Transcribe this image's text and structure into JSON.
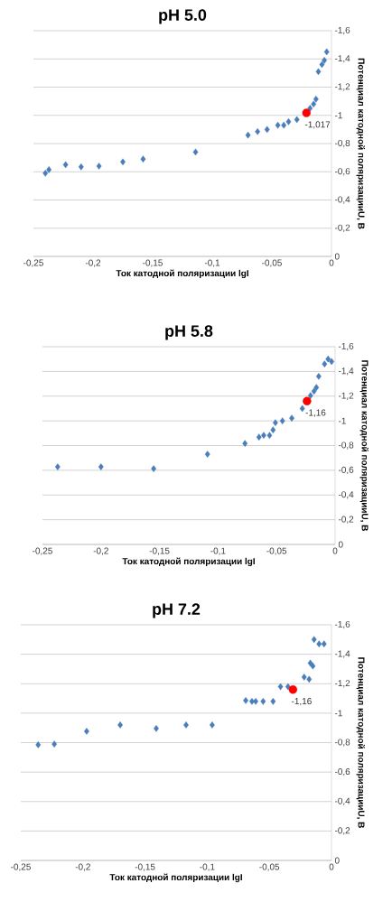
{
  "chart_data": [
    {
      "type": "scatter",
      "title": "pH 5.0",
      "xlabel": "Ток катодной поляризации lgI",
      "ylabel": "Потенциал катодной поляризацииU, В",
      "grid": "y",
      "xlim": [
        -0.25,
        0
      ],
      "ylim": [
        0,
        -1.6
      ],
      "xticks": [
        {
          "value": -0.25,
          "label": "-0,25"
        },
        {
          "value": -0.2,
          "label": "-0,2"
        },
        {
          "value": -0.15,
          "label": "-0,15"
        },
        {
          "value": -0.1,
          "label": "-0,1"
        },
        {
          "value": -0.05,
          "label": "-0,05"
        },
        0
      ],
      "yticks": [
        0,
        {
          "value": -0.2,
          "label": "-0,2"
        },
        {
          "value": -0.4,
          "label": "-0,4"
        },
        {
          "value": -0.6,
          "label": "-0,6"
        },
        {
          "value": -0.8,
          "label": "-0,8"
        },
        -1,
        {
          "value": -1.2,
          "label": "-1,2"
        },
        {
          "value": -1.4,
          "label": "-1,4"
        },
        {
          "value": -1.6,
          "label": "-1,6"
        }
      ],
      "series": [
        {
          "color": "#4a7ebb",
          "marker": "diamond",
          "x": [
            -0.24,
            -0.237,
            -0.223,
            -0.21,
            -0.195,
            -0.175,
            -0.158,
            -0.114,
            -0.07,
            -0.062,
            -0.054,
            -0.045,
            -0.04,
            -0.036,
            -0.029,
            -0.018,
            -0.015,
            -0.013,
            -0.011,
            -0.008,
            -0.006,
            -0.004
          ],
          "values": [
            -0.59,
            -0.615,
            -0.65,
            -0.635,
            -0.64,
            -0.67,
            -0.69,
            -0.74,
            -0.86,
            -0.885,
            -0.9,
            -0.93,
            -0.93,
            -0.955,
            -0.97,
            -1.05,
            -1.08,
            -1.115,
            -1.31,
            -1.36,
            -1.39,
            -1.45
          ]
        },
        {
          "color": "#ff0000",
          "marker": "circle",
          "x": [
            -0.021
          ],
          "values": [
            -1.017
          ]
        }
      ],
      "annotations": [
        {
          "text": "-1,017",
          "x": -0.021,
          "y": -1.017
        }
      ]
    },
    {
      "type": "scatter",
      "title": "pH 5.8",
      "xlabel": "Ток катодной поляризации lgI",
      "ylabel": "Потенциал катодной поляризацииU, В",
      "grid": "y",
      "xlim": [
        -0.25,
        0
      ],
      "ylim": [
        0,
        -1.6
      ],
      "xticks": [
        {
          "value": -0.25,
          "label": "-0,25"
        },
        {
          "value": -0.2,
          "label": "-0,2"
        },
        {
          "value": -0.15,
          "label": "-0,15"
        },
        {
          "value": -0.1,
          "label": "-0,1"
        },
        {
          "value": -0.05,
          "label": "-0,05"
        },
        0
      ],
      "yticks": [
        0,
        {
          "value": -0.2,
          "label": "-0,2"
        },
        {
          "value": -0.4,
          "label": "-0,4"
        },
        {
          "value": -0.6,
          "label": "-0,6"
        },
        {
          "value": -0.8,
          "label": "-0,8"
        },
        -1,
        {
          "value": -1.2,
          "label": "-1,2"
        },
        {
          "value": -1.4,
          "label": "-1,4"
        },
        {
          "value": -1.6,
          "label": "-1,6"
        }
      ],
      "series": [
        {
          "color": "#4a7ebb",
          "marker": "diamond",
          "x": [
            -0.237,
            -0.2,
            -0.155,
            -0.109,
            -0.077,
            -0.065,
            -0.061,
            -0.056,
            -0.053,
            -0.051,
            -0.045,
            -0.037,
            -0.028,
            -0.021,
            -0.018,
            -0.016,
            -0.014,
            -0.009,
            -0.006,
            -0.003
          ],
          "values": [
            -0.628,
            -0.628,
            -0.613,
            -0.73,
            -0.817,
            -0.868,
            -0.883,
            -0.883,
            -0.927,
            -0.985,
            -1.0,
            -1.022,
            -1.1,
            -1.204,
            -1.24,
            -1.27,
            -1.36,
            -1.46,
            -1.5,
            -1.48
          ]
        },
        {
          "color": "#ff0000",
          "marker": "circle",
          "x": [
            -0.024
          ],
          "values": [
            -1.16
          ]
        }
      ],
      "annotations": [
        {
          "text": "-1,16",
          "x": -0.024,
          "y": -1.16
        }
      ]
    },
    {
      "type": "scatter",
      "title": "pH 7.2",
      "xlabel": "Ток катодной поляризации lgI",
      "ylabel": "Потенциал катодной поляризацииU, В",
      "grid": "y",
      "xlim": [
        -0.25,
        0
      ],
      "ylim": [
        0,
        -1.6
      ],
      "xticks": [
        {
          "value": -0.25,
          "label": "-0,25"
        },
        {
          "value": -0.2,
          "label": "-0,2"
        },
        {
          "value": -0.15,
          "label": "-0,15"
        },
        {
          "value": -0.1,
          "label": "-0,1"
        },
        {
          "value": -0.05,
          "label": "-0,05"
        },
        0
      ],
      "yticks": [
        0,
        {
          "value": -0.2,
          "label": "-0,2"
        },
        {
          "value": -0.4,
          "label": "-0,4"
        },
        {
          "value": -0.6,
          "label": "-0,6"
        },
        {
          "value": -0.8,
          "label": "-0,8"
        },
        -1,
        {
          "value": -1.2,
          "label": "-1,2"
        },
        {
          "value": -1.4,
          "label": "-1,4"
        },
        {
          "value": -1.6,
          "label": "-1,6"
        }
      ],
      "series": [
        {
          "color": "#4a7ebb",
          "marker": "diamond",
          "x": [
            -0.236,
            -0.223,
            -0.197,
            -0.17,
            -0.141,
            -0.117,
            -0.096,
            -0.069,
            -0.064,
            -0.061,
            -0.055,
            -0.047,
            -0.041,
            -0.035,
            -0.022,
            -0.018,
            -0.017,
            -0.015,
            -0.014,
            -0.01,
            -0.006
          ],
          "values": [
            -0.785,
            -0.79,
            -0.877,
            -0.92,
            -0.896,
            -0.92,
            -0.92,
            -1.086,
            -1.08,
            -1.08,
            -1.08,
            -1.08,
            -1.18,
            -1.18,
            -1.245,
            -1.23,
            -1.34,
            -1.32,
            -1.5,
            -1.47,
            -1.47
          ]
        },
        {
          "color": "#ff0000",
          "marker": "circle",
          "x": [
            -0.031
          ],
          "values": [
            -1.16
          ]
        }
      ],
      "annotations": [
        {
          "text": "-1,16",
          "x": -0.031,
          "y": -1.16
        }
      ]
    }
  ]
}
